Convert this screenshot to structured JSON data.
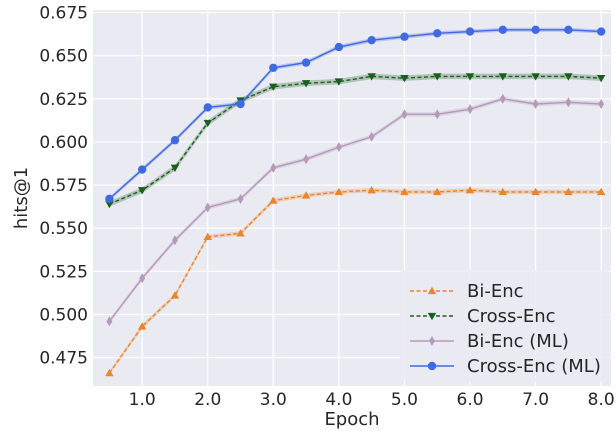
{
  "chart_data": {
    "type": "line",
    "title": "",
    "xlabel": "Epoch",
    "ylabel": "hits@1",
    "xlim": [
      0.25,
      8.15
    ],
    "ylim": [
      0.4585,
      0.6765
    ],
    "xticks": [
      1.0,
      2.0,
      3.0,
      4.0,
      5.0,
      6.0,
      7.0,
      8.0
    ],
    "xtick_labels": [
      "1.0",
      "2.0",
      "3.0",
      "4.0",
      "5.0",
      "6.0",
      "7.0",
      "8.0"
    ],
    "yticks": [
      0.475,
      0.5,
      0.525,
      0.55,
      0.575,
      0.6,
      0.625,
      0.65,
      0.675
    ],
    "ytick_labels": [
      "0.475",
      "0.500",
      "0.525",
      "0.550",
      "0.575",
      "0.600",
      "0.625",
      "0.650",
      "0.675"
    ],
    "grid": true,
    "legend_position": "bottom-right",
    "x": [
      0.5,
      1.0,
      1.5,
      2.0,
      2.5,
      3.0,
      3.5,
      4.0,
      4.5,
      5.0,
      5.5,
      6.0,
      6.5,
      7.0,
      7.5,
      8.0
    ],
    "series": [
      {
        "name": "Bi-Enc",
        "color": "#e8862c",
        "linestyle": "dashed",
        "marker": "triangle-up",
        "values": [
          0.466,
          0.493,
          0.511,
          0.545,
          0.547,
          0.566,
          0.569,
          0.571,
          0.572,
          0.571,
          0.571,
          0.572,
          0.571,
          0.571,
          0.571,
          0.571
        ],
        "band": 0.0012
      },
      {
        "name": "Cross-Enc",
        "color": "#1b5e20",
        "linestyle": "dashed",
        "marker": "triangle-down",
        "values": [
          0.564,
          0.572,
          0.585,
          0.611,
          0.624,
          0.632,
          0.634,
          0.635,
          0.638,
          0.637,
          0.638,
          0.638,
          0.638,
          0.638,
          0.638,
          0.637
        ],
        "band": 0.0016
      },
      {
        "name": "Bi-Enc (ML)",
        "color": "#b59aba",
        "linestyle": "solid",
        "marker": "diamond",
        "values": [
          0.496,
          0.521,
          0.543,
          0.562,
          0.567,
          0.585,
          0.59,
          0.597,
          0.603,
          0.616,
          0.616,
          0.619,
          0.625,
          0.622,
          0.623,
          0.622
        ],
        "band": 0.0013
      },
      {
        "name": "Cross-Enc (ML)",
        "color": "#4169e1",
        "linestyle": "solid",
        "marker": "circle",
        "values": [
          0.567,
          0.584,
          0.601,
          0.62,
          0.622,
          0.643,
          0.646,
          0.655,
          0.659,
          0.661,
          0.663,
          0.664,
          0.665,
          0.665,
          0.665,
          0.664
        ],
        "band": 0.0012
      }
    ]
  }
}
